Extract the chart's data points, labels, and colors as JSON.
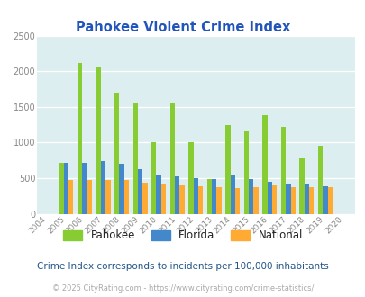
{
  "title": "Pahokee Violent Crime Index",
  "years": [
    "2004",
    "2005",
    "2006",
    "2007",
    "2008",
    "2009",
    "2010",
    "2011",
    "2012",
    "2013",
    "2014",
    "2015",
    "2016",
    "2017",
    "2018",
    "2019",
    "2020"
  ],
  "pahokee": [
    0,
    720,
    2110,
    2050,
    1700,
    1555,
    1000,
    1550,
    1010,
    490,
    1240,
    1155,
    1380,
    1220,
    775,
    950,
    0
  ],
  "florida": [
    0,
    715,
    715,
    740,
    700,
    620,
    555,
    520,
    500,
    490,
    555,
    490,
    450,
    415,
    410,
    385,
    0
  ],
  "national": [
    0,
    475,
    475,
    475,
    470,
    440,
    410,
    395,
    390,
    375,
    365,
    370,
    395,
    380,
    380,
    380,
    0
  ],
  "pahokee_color": "#88cc33",
  "florida_color": "#4488cc",
  "national_color": "#ffaa33",
  "bg_color": "#ddeef0",
  "ylim": [
    0,
    2500
  ],
  "yticks": [
    0,
    500,
    1000,
    1500,
    2000,
    2500
  ],
  "subtitle": "Crime Index corresponds to incidents per 100,000 inhabitants",
  "footnote": "© 2025 CityRating.com - https://www.cityrating.com/crime-statistics/",
  "title_color": "#2255bb",
  "subtitle_color": "#225588",
  "footnote_color": "#aaaaaa",
  "legend_text_color": "#222222",
  "tick_color": "#888888"
}
